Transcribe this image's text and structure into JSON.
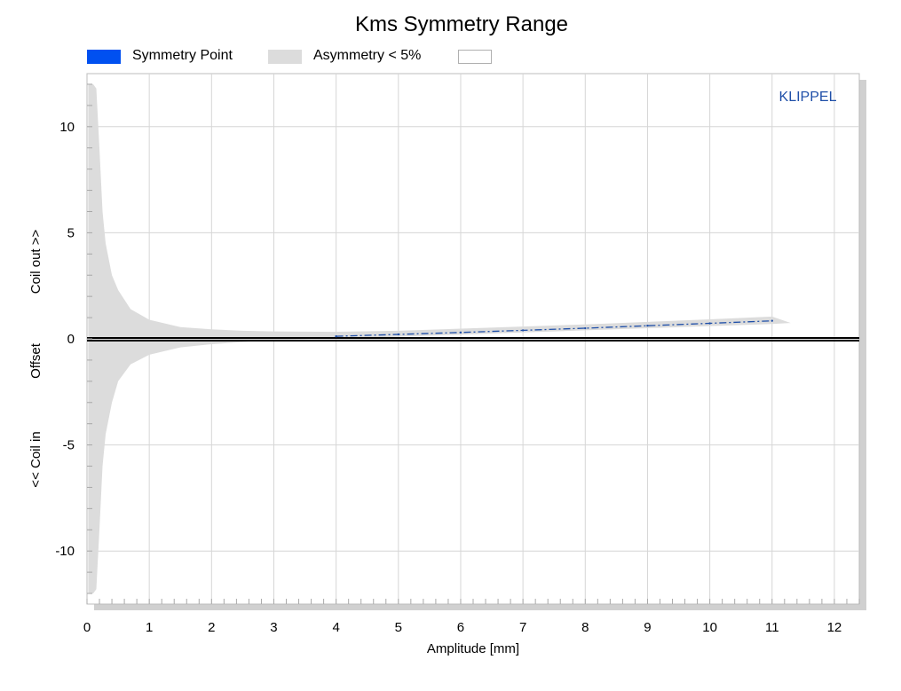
{
  "chart_data": {
    "type": "area",
    "title": "Kms Symmetry Range",
    "xlabel": "Amplitude [mm]",
    "ylabel": [
      "<< Coil in",
      "Offset",
      "Coil out >>"
    ],
    "watermark": "KLIPPEL",
    "xlim": [
      0,
      12.4
    ],
    "ylim": [
      -12.5,
      12.5
    ],
    "xticks": [
      0,
      1,
      2,
      3,
      4,
      5,
      6,
      7,
      8,
      9,
      10,
      11,
      12
    ],
    "yticks": [
      10,
      5,
      0,
      -5,
      -10
    ],
    "grid": true,
    "legend_position": "top-left",
    "legend": [
      {
        "label": "Symmetry Point",
        "color": "#0050f0"
      },
      {
        "label": "Asymmetry < 5%",
        "color": "#dcdcdc"
      },
      {
        "label": "",
        "color": "#ffffff"
      }
    ],
    "series": [
      {
        "name": "Symmetry Point",
        "color": "#1f4fa8",
        "x": [
          4.0,
          5.0,
          6.0,
          7.0,
          8.0,
          9.0,
          10.0,
          11.0
        ],
        "y": [
          0.12,
          0.21,
          0.3,
          0.4,
          0.5,
          0.62,
          0.73,
          0.85
        ]
      },
      {
        "name": "Asymmetry < 5%",
        "color": "#dcdcdc",
        "x": [
          0.02,
          0.1,
          0.15,
          0.2,
          0.25,
          0.3,
          0.4,
          0.5,
          0.7,
          1.0,
          1.5,
          2.0,
          2.5,
          3.0,
          4.0,
          5.0,
          6.0,
          7.0,
          8.0,
          9.0,
          10.0,
          11.0,
          11.3
        ],
        "upper": [
          12.0,
          12.0,
          11.8,
          9.0,
          6.0,
          4.5,
          3.0,
          2.3,
          1.4,
          0.9,
          0.55,
          0.45,
          0.38,
          0.35,
          0.33,
          0.38,
          0.48,
          0.58,
          0.68,
          0.8,
          0.92,
          1.05,
          0.75
        ],
        "lower": [
          -12.0,
          -12.0,
          -11.8,
          -9.0,
          -6.0,
          -4.5,
          -3.0,
          -2.0,
          -1.2,
          -0.75,
          -0.4,
          -0.25,
          -0.15,
          -0.05,
          0.0,
          0.1,
          0.2,
          0.3,
          0.4,
          0.5,
          0.6,
          0.7,
          0.75
        ]
      }
    ]
  }
}
